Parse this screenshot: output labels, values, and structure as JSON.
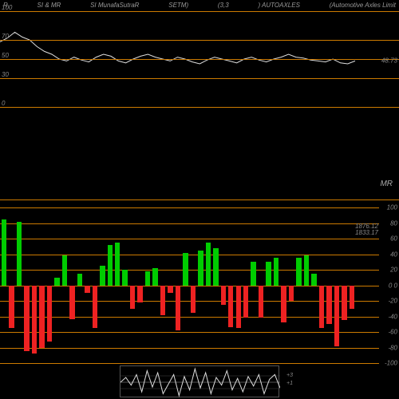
{
  "header": {
    "items": [
      "R",
      "SI & MR",
      "SI MunafaSutraR",
      "SETM)",
      "(3,3",
      ") AUTOAXLES",
      "(Automotive  Axles Limit"
    ]
  },
  "colors": {
    "background": "#000000",
    "grid_orange": "#cc7a00",
    "line_white": "#dddddd",
    "bar_up": "#00cc00",
    "bar_down": "#ee2222",
    "text": "#888888"
  },
  "top_panel": {
    "ylim": [
      0,
      100
    ],
    "gridlines": [
      0,
      30,
      50,
      70,
      100
    ],
    "current_value": "48.73",
    "line_data": [
      68,
      72,
      78,
      73,
      70,
      63,
      58,
      55,
      50,
      48,
      52,
      49,
      47,
      52,
      55,
      53,
      48,
      46,
      50,
      53,
      55,
      52,
      50,
      48,
      52,
      50,
      47,
      45,
      49,
      52,
      50,
      48,
      46,
      50,
      52,
      49,
      47,
      50,
      52,
      55,
      52,
      51,
      49,
      48,
      47,
      50,
      46,
      45,
      48
    ]
  },
  "mid_panel": {
    "label": "MR",
    "gridline_y": 0.5
  },
  "bottom_panel": {
    "ylim": [
      -100,
      100
    ],
    "gridlines": [
      -100,
      -80,
      -60,
      -40,
      -20,
      0,
      20,
      40,
      60,
      80,
      100
    ],
    "price_labels": [
      "1876.12",
      "1833.17"
    ],
    "bars": [
      {
        "v": 85
      },
      {
        "v": -55
      },
      {
        "v": 82
      },
      {
        "v": -85
      },
      {
        "v": -88
      },
      {
        "v": -80
      },
      {
        "v": -72
      },
      {
        "v": 10
      },
      {
        "v": 38
      },
      {
        "v": -44
      },
      {
        "v": 15
      },
      {
        "v": -10
      },
      {
        "v": -55
      },
      {
        "v": 25
      },
      {
        "v": 52
      },
      {
        "v": 55
      },
      {
        "v": 20
      },
      {
        "v": -30
      },
      {
        "v": -22
      },
      {
        "v": 18
      },
      {
        "v": 22
      },
      {
        "v": -38
      },
      {
        "v": -10
      },
      {
        "v": -58
      },
      {
        "v": 42
      },
      {
        "v": -35
      },
      {
        "v": 45
      },
      {
        "v": 55
      },
      {
        "v": 48
      },
      {
        "v": -25
      },
      {
        "v": -54
      },
      {
        "v": -55
      },
      {
        "v": -42
      },
      {
        "v": 30
      },
      {
        "v": -42
      },
      {
        "v": 30
      },
      {
        "v": 35
      },
      {
        "v": -48
      },
      {
        "v": -20
      },
      {
        "v": 35
      },
      {
        "v": 38
      },
      {
        "v": 15
      },
      {
        "v": -55
      },
      {
        "v": -50
      },
      {
        "v": -78
      },
      {
        "v": -45
      },
      {
        "v": -30
      }
    ]
  },
  "mini_panel": {
    "labels": [
      "+3",
      "+1"
    ],
    "line_data": [
      0,
      5,
      -3,
      8,
      -10,
      12,
      -5,
      10,
      -12,
      -2,
      8,
      -14,
      6,
      -8,
      14,
      -6,
      10,
      -12,
      5,
      -3,
      12,
      -8,
      4,
      -10,
      6,
      -4,
      8,
      -12,
      3,
      8,
      -6
    ]
  }
}
